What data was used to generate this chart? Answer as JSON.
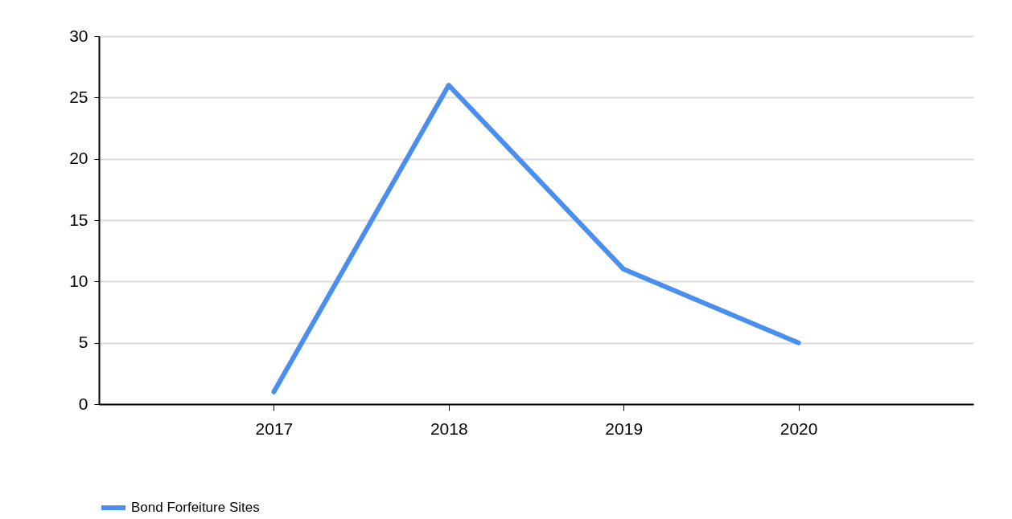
{
  "chart_data": {
    "type": "line",
    "x": [
      2017,
      2018,
      2019,
      2020
    ],
    "series": [
      {
        "name": "Bond Forfeiture Sites",
        "color": "#4a8ff0",
        "values": [
          1,
          26,
          11,
          5
        ]
      }
    ],
    "xlim": [
      2016,
      2021
    ],
    "xticks": [
      2017,
      2018,
      2019,
      2020
    ],
    "ylim": [
      0,
      30
    ],
    "yticks": [
      0,
      5,
      10,
      15,
      20,
      25,
      30
    ],
    "grid": "y",
    "legend": "bottom",
    "marker": "none",
    "line_style": "solid"
  }
}
